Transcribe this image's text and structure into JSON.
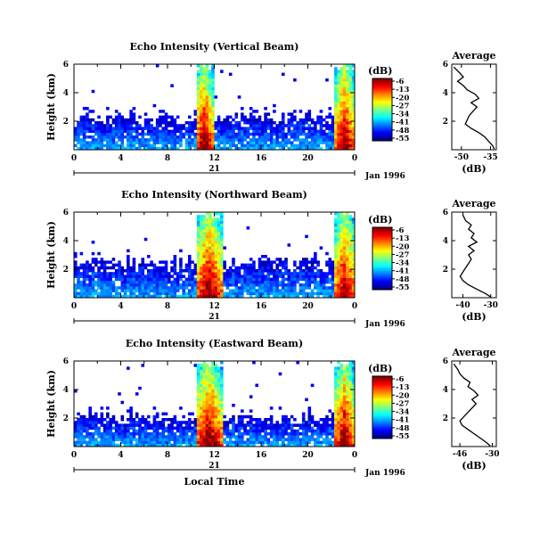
{
  "chart_data": [
    {
      "type": "heatmap",
      "title": "Echo Intensity (Vertical Beam)",
      "ylabel": "Height (km)",
      "yticks": [
        "2",
        "4",
        "6"
      ],
      "xticks": [
        "0",
        "4",
        "8",
        "12",
        "16",
        "20",
        "0"
      ],
      "xlim": [
        0,
        24
      ],
      "ylim": [
        0,
        6
      ],
      "date_day": "21",
      "date_label": "Jan 1996",
      "colorbar": {
        "unit": "(dB)",
        "ticks": [
          "-6",
          "-13",
          "-20",
          "-27",
          "-34",
          "-41",
          "-48",
          "-55"
        ]
      },
      "cloud_top_km": 2.2,
      "rain_bands": [
        {
          "start": 10.4,
          "end": 11.9
        },
        {
          "start": 22.3,
          "end": 24
        }
      ]
    },
    {
      "type": "heatmap",
      "title": "Echo Intensity (Northward Beam)",
      "ylabel": "Height (km)",
      "yticks": [
        "2",
        "4",
        "6"
      ],
      "xticks": [
        "0",
        "4",
        "8",
        "12",
        "16",
        "20",
        "0"
      ],
      "xlim": [
        0,
        24
      ],
      "ylim": [
        0,
        6
      ],
      "date_day": "21",
      "date_label": "Jan 1996",
      "colorbar": {
        "unit": "(dB)",
        "ticks": [
          "-6",
          "-13",
          "-20",
          "-27",
          "-34",
          "-41",
          "-48",
          "-55"
        ]
      },
      "cloud_top_km": 2.4,
      "rain_bands": [
        {
          "start": 10.4,
          "end": 12.7
        },
        {
          "start": 22.3,
          "end": 24
        }
      ]
    },
    {
      "type": "heatmap",
      "title": "Echo Intensity (Eastward Beam)",
      "ylabel": "Height (km)",
      "yticks": [
        "2",
        "4",
        "6"
      ],
      "xticks": [
        "0",
        "4",
        "8",
        "12",
        "16",
        "20",
        "0"
      ],
      "xlim": [
        0,
        24
      ],
      "ylim": [
        0,
        6
      ],
      "date_day": "21",
      "date_label": "Jan 1996",
      "xlabel": "Local Time",
      "colorbar": {
        "unit": "(dB)",
        "ticks": [
          "-6",
          "-13",
          "-20",
          "-27",
          "-34",
          "-41",
          "-48",
          "-55"
        ]
      },
      "cloud_top_km": 2.0,
      "rain_bands": [
        {
          "start": 10.4,
          "end": 12.7
        },
        {
          "start": 22.3,
          "end": 24
        }
      ]
    },
    {
      "type": "line",
      "title": "Average",
      "xlabel": "(dB)",
      "xticks": [
        "-50",
        "-35"
      ],
      "xlim": [
        -55,
        -32
      ],
      "ylim": [
        0,
        6
      ],
      "yticks": [
        "2",
        "4",
        "6"
      ],
      "series": [
        {
          "x": [
            -33,
            -34,
            -36,
            -38,
            -41,
            -45,
            -48,
            -47,
            -46,
            -44,
            -42,
            -45,
            -41,
            -43,
            -47,
            -49,
            -52,
            -49,
            -51,
            -54
          ],
          "y": [
            0.05,
            0.3,
            0.6,
            0.9,
            1.2,
            1.5,
            1.8,
            2.1,
            2.4,
            2.7,
            3.0,
            3.3,
            3.6,
            3.9,
            4.2,
            4.5,
            4.8,
            5.1,
            5.4,
            5.8
          ]
        }
      ]
    },
    {
      "type": "line",
      "title": "Average",
      "xlabel": "(dB)",
      "xticks": [
        "-40",
        "-30"
      ],
      "xlim": [
        -44,
        -28
      ],
      "ylim": [
        0,
        6
      ],
      "yticks": [
        "2",
        "4",
        "6"
      ],
      "series": [
        {
          "x": [
            -30,
            -32,
            -35,
            -38,
            -40,
            -41,
            -40,
            -39,
            -38,
            -37,
            -38,
            -36,
            -38,
            -35,
            -37,
            -36,
            -38,
            -37,
            -39,
            -40
          ],
          "y": [
            0.05,
            0.3,
            0.6,
            0.9,
            1.2,
            1.5,
            1.8,
            2.1,
            2.4,
            2.7,
            3.0,
            3.3,
            3.6,
            3.9,
            4.2,
            4.5,
            4.8,
            5.1,
            5.4,
            5.8
          ]
        }
      ]
    },
    {
      "type": "line",
      "title": "Average",
      "xlabel": "(dB)",
      "xticks": [
        "-46",
        "-30"
      ],
      "xlim": [
        -50,
        -28
      ],
      "ylim": [
        0,
        6
      ],
      "yticks": [
        "2",
        "4",
        "6"
      ],
      "series": [
        {
          "x": [
            -31,
            -33,
            -36,
            -39,
            -42,
            -45,
            -46,
            -44,
            -42,
            -40,
            -38,
            -40,
            -37,
            -39,
            -42,
            -41,
            -44,
            -46,
            -47,
            -49
          ],
          "y": [
            0.05,
            0.3,
            0.6,
            0.9,
            1.2,
            1.5,
            1.8,
            2.1,
            2.4,
            2.7,
            3.0,
            3.3,
            3.6,
            3.9,
            4.2,
            4.5,
            4.8,
            5.1,
            5.4,
            5.8
          ]
        }
      ]
    }
  ]
}
